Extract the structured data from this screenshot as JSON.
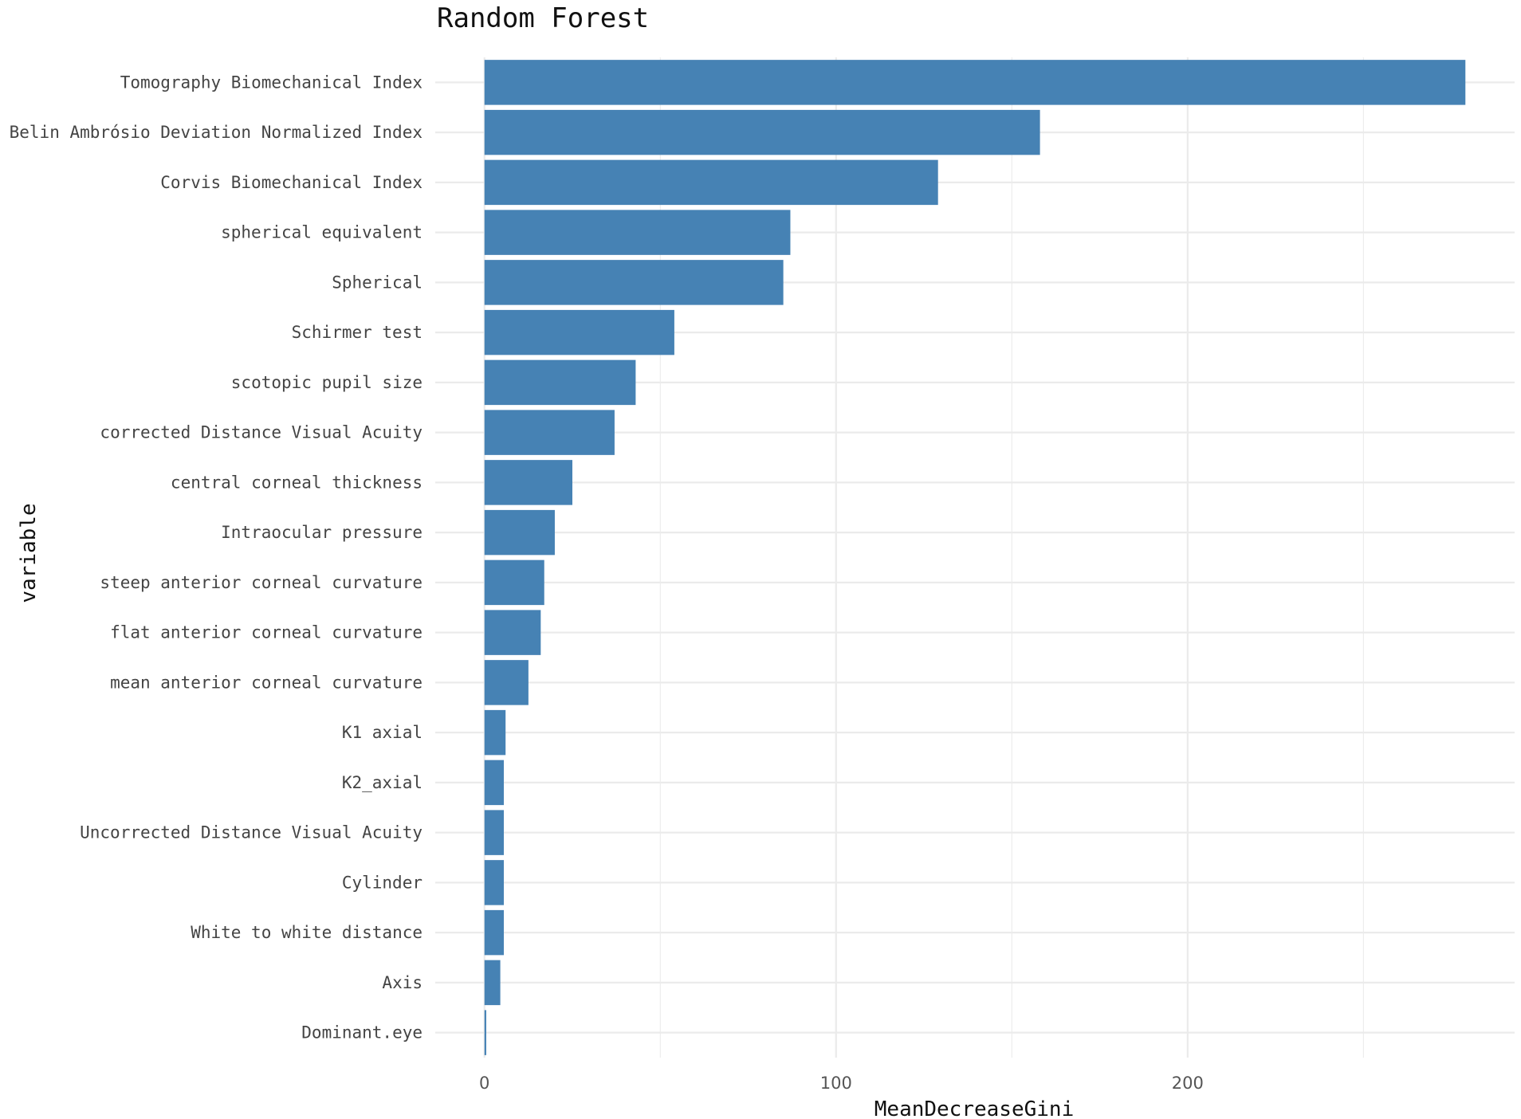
{
  "chart_data": {
    "type": "bar",
    "orientation": "horizontal",
    "title": "Random Forest",
    "xlabel": "MeanDecreaseGini",
    "ylabel": "variable",
    "categories": [
      "Tomography Biomechanical Index",
      "Belin Ambrósio Deviation Normalized Index",
      "Corvis Biomechanical Index",
      "spherical equivalent",
      "Spherical",
      "Schirmer test",
      "scotopic pupil size",
      "corrected Distance Visual Acuity",
      "central corneal thickness",
      "Intraocular pressure",
      "steep anterior corneal curvature",
      "flat anterior corneal curvature",
      "mean anterior corneal curvature",
      "K1 axial",
      "K2_axial",
      "Uncorrected Distance Visual Acuity",
      "Cylinder",
      "White to white distance",
      "Axis",
      "Dominant.eye"
    ],
    "values": [
      279,
      158,
      129,
      87,
      85,
      54,
      43,
      37,
      25,
      20,
      17,
      16,
      12.5,
      6,
      5.5,
      5.5,
      5.5,
      5.5,
      4.5,
      0.5
    ],
    "x_ticks": [
      0,
      100,
      200
    ],
    "xlim": [
      -14,
      293
    ],
    "grid": true,
    "bar_color": "#4682b4"
  }
}
